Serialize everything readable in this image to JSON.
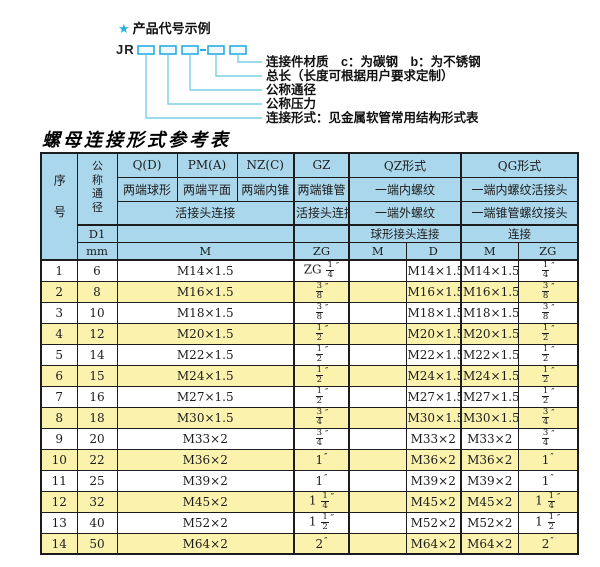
{
  "diagram": {
    "star": "★",
    "title": "产品代号示例",
    "prefix": "JR",
    "labels": [
      "连接件材质　c：为碳钢　b：为不锈钢",
      "总长（长度可根据用户要求定制）",
      "公称通径",
      "公称压力",
      "连接形式：见金属软管常用结构形式表"
    ]
  },
  "table": {
    "title": "螺母连接形式参考表",
    "header": {
      "seq": "序号",
      "dn": "公称通径",
      "d1": "D1",
      "mm": "mm",
      "q": "Q(D)",
      "q_sub": "两端球形",
      "pm": "PM(A)",
      "pm_sub": "两端平面",
      "nz": "NZ(C)",
      "nz_sub": "两端内锥",
      "gz": "GZ",
      "gz_sub": "两端锥管",
      "qz": "QZ形式",
      "qz_r2": "一端内螺纹",
      "qz_r3": "一端外螺纹",
      "qz_r4": "球形接头连接",
      "qg": "QG形式",
      "qg_r2": "一端内螺纹活接头",
      "qg_r3": "一端锥管螺纹接头",
      "qg_r4": "连接",
      "union3": "活接头连接",
      "union1": "活接头连接",
      "m_span": "M",
      "zg_gz": "ZG",
      "qz_m": "M",
      "qz_d": "D",
      "qg_m": "M",
      "qg_zg": "ZG"
    },
    "rows": [
      {
        "no": "1",
        "dn": "6",
        "m": "M14×1.5",
        "zg": "ZG 1/4″",
        "qz_m": "",
        "qz_d": "M14×1.5",
        "qg_m": "M14×1.5",
        "qg_zg": "1/4″"
      },
      {
        "no": "2",
        "dn": "8",
        "m": "M16×1.5",
        "zg": "3/8″",
        "qz_m": "",
        "qz_d": "M16×1.5",
        "qg_m": "M16×1.5",
        "qg_zg": "3/8″"
      },
      {
        "no": "3",
        "dn": "10",
        "m": "M18×1.5",
        "zg": "3/8″",
        "qz_m": "",
        "qz_d": "M18×1.5",
        "qg_m": "M18×1.5",
        "qg_zg": "3/8″"
      },
      {
        "no": "4",
        "dn": "12",
        "m": "M20×1.5",
        "zg": "1/2″",
        "qz_m": "",
        "qz_d": "M20×1.5",
        "qg_m": "M20×1.5",
        "qg_zg": "1/2″"
      },
      {
        "no": "5",
        "dn": "14",
        "m": "M22×1.5",
        "zg": "1/2″",
        "qz_m": "",
        "qz_d": "M22×1.5",
        "qg_m": "M22×1.5",
        "qg_zg": "1/2″"
      },
      {
        "no": "6",
        "dn": "15",
        "m": "M24×1.5",
        "zg": "1/2″",
        "qz_m": "",
        "qz_d": "M24×1.5",
        "qg_m": "M24×1.5",
        "qg_zg": "1/2″"
      },
      {
        "no": "7",
        "dn": "16",
        "m": "M27×1.5",
        "zg": "1/2″",
        "qz_m": "",
        "qz_d": "M27×1.5",
        "qg_m": "M27×1.5",
        "qg_zg": "1/2″"
      },
      {
        "no": "8",
        "dn": "18",
        "m": "M30×1.5",
        "zg": "3/4″",
        "qz_m": "",
        "qz_d": "M30×1.5",
        "qg_m": "M30×1.5",
        "qg_zg": "3/4″"
      },
      {
        "no": "9",
        "dn": "20",
        "m": "M33×2",
        "zg": "3/4″",
        "qz_m": "",
        "qz_d": "M33×2",
        "qg_m": "M33×2",
        "qg_zg": "3/4″"
      },
      {
        "no": "10",
        "dn": "22",
        "m": "M36×2",
        "zg": "1″",
        "qz_m": "",
        "qz_d": "M36×2",
        "qg_m": "M36×2",
        "qg_zg": "1″"
      },
      {
        "no": "11",
        "dn": "25",
        "m": "M39×2",
        "zg": "1″",
        "qz_m": "",
        "qz_d": "M39×2",
        "qg_m": "M39×2",
        "qg_zg": "1″"
      },
      {
        "no": "12",
        "dn": "32",
        "m": "M45×2",
        "zg": "1 1/4″",
        "qz_m": "",
        "qz_d": "M45×2",
        "qg_m": "M45×2",
        "qg_zg": "1 1/4″"
      },
      {
        "no": "13",
        "dn": "40",
        "m": "M52×2",
        "zg": "1 1/2″",
        "qz_m": "",
        "qz_d": "M52×2",
        "qg_m": "M52×2",
        "qg_zg": "1 1/2″"
      },
      {
        "no": "14",
        "dn": "50",
        "m": "M64×2",
        "zg": "2″",
        "qz_m": "",
        "qz_d": "M64×2",
        "qg_m": "M64×2",
        "qg_zg": "2″"
      }
    ]
  },
  "colors": {
    "header_bg": "#abd7ec",
    "row_alt": "#fbf2ae",
    "row_bg": "#ffffff",
    "border": "#1c1c1c",
    "accent": "#29ade0",
    "line": "#7ccfe9",
    "text": "#1d1d1d"
  }
}
